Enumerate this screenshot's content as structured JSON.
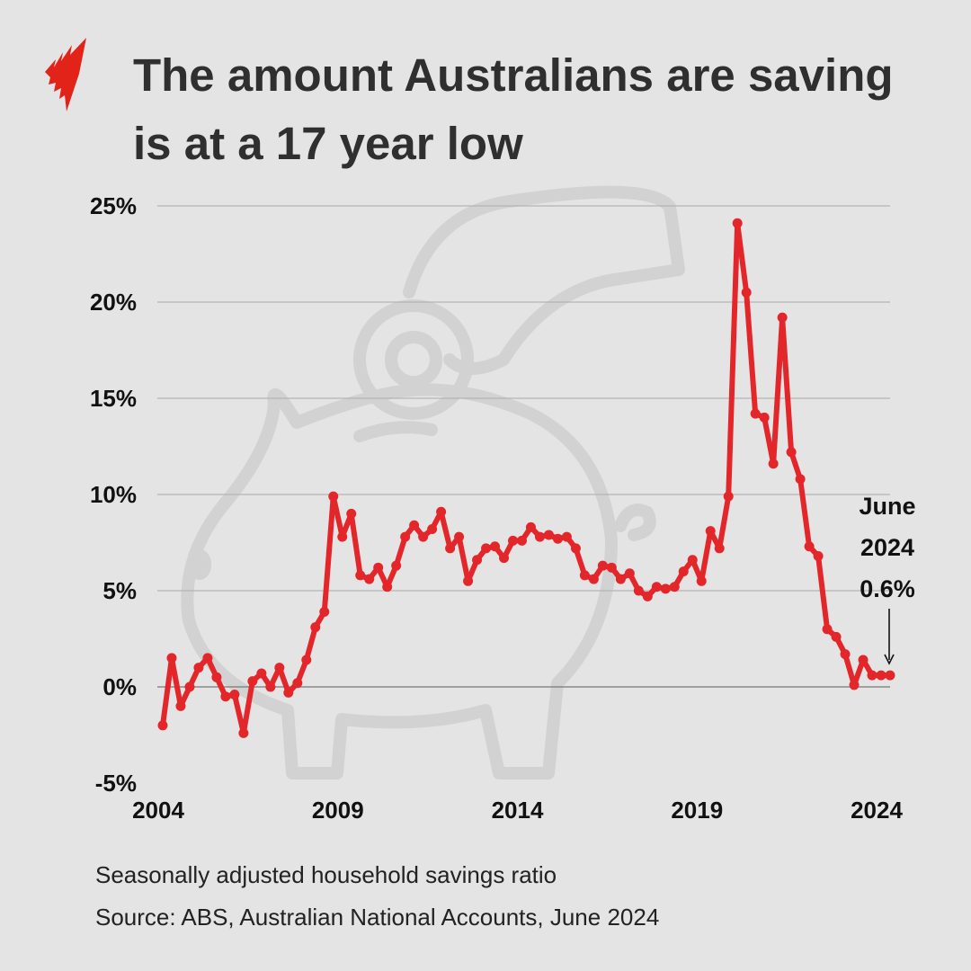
{
  "title": "The amount Australians are saving is at a 17 year low",
  "footer": {
    "note": "Seasonally adjusted household savings ratio",
    "source": "Source: ABS, Australian National Accounts, June 2024"
  },
  "logo": {
    "name": "SBS logo",
    "color": "#e2231a"
  },
  "chart_data": {
    "type": "line",
    "title": "The amount Australians are saving is at a 17 year low",
    "xlabel": "",
    "ylabel": "",
    "frequency": "quarterly",
    "x_start": "2004 Q1",
    "x_end": "2024 Q2",
    "xlim": [
      2004,
      2024
    ],
    "ylim": [
      -5,
      25
    ],
    "x_ticks": [
      "2004",
      "2009",
      "2014",
      "2019",
      "2024"
    ],
    "y_ticks": [
      "25%",
      "20%",
      "15%",
      "10%",
      "5%",
      "0%",
      "-5%"
    ],
    "y_tick_values": [
      25,
      20,
      15,
      10,
      5,
      0,
      -5
    ],
    "grid": "horizontal",
    "series": [
      {
        "color": "#e3262a",
        "values": [
          -2.0,
          1.5,
          -1.0,
          0.0,
          1.0,
          1.5,
          0.5,
          -0.5,
          -0.4,
          -2.4,
          0.3,
          0.7,
          0.0,
          1.0,
          -0.3,
          0.2,
          1.4,
          3.1,
          3.9,
          9.9,
          7.8,
          9.0,
          5.8,
          5.6,
          6.2,
          5.2,
          6.3,
          7.8,
          8.4,
          7.8,
          8.2,
          9.1,
          7.2,
          7.8,
          5.5,
          6.6,
          7.2,
          7.3,
          6.7,
          7.6,
          7.6,
          8.3,
          7.8,
          7.9,
          7.7,
          7.8,
          7.2,
          5.8,
          5.6,
          6.3,
          6.2,
          5.6,
          5.9,
          5.0,
          4.7,
          5.2,
          5.1,
          5.2,
          6.0,
          6.6,
          5.5,
          8.1,
          7.2,
          9.9,
          24.1,
          20.5,
          14.2,
          14.0,
          11.6,
          19.2,
          12.2,
          10.8,
          7.3,
          6.8,
          3.0,
          2.6,
          1.7,
          0.1,
          1.4,
          0.6,
          0.6,
          0.6
        ]
      }
    ],
    "annotation": {
      "lines": [
        "June",
        "2024",
        "0.6%"
      ],
      "target": "2024 Q2"
    }
  }
}
